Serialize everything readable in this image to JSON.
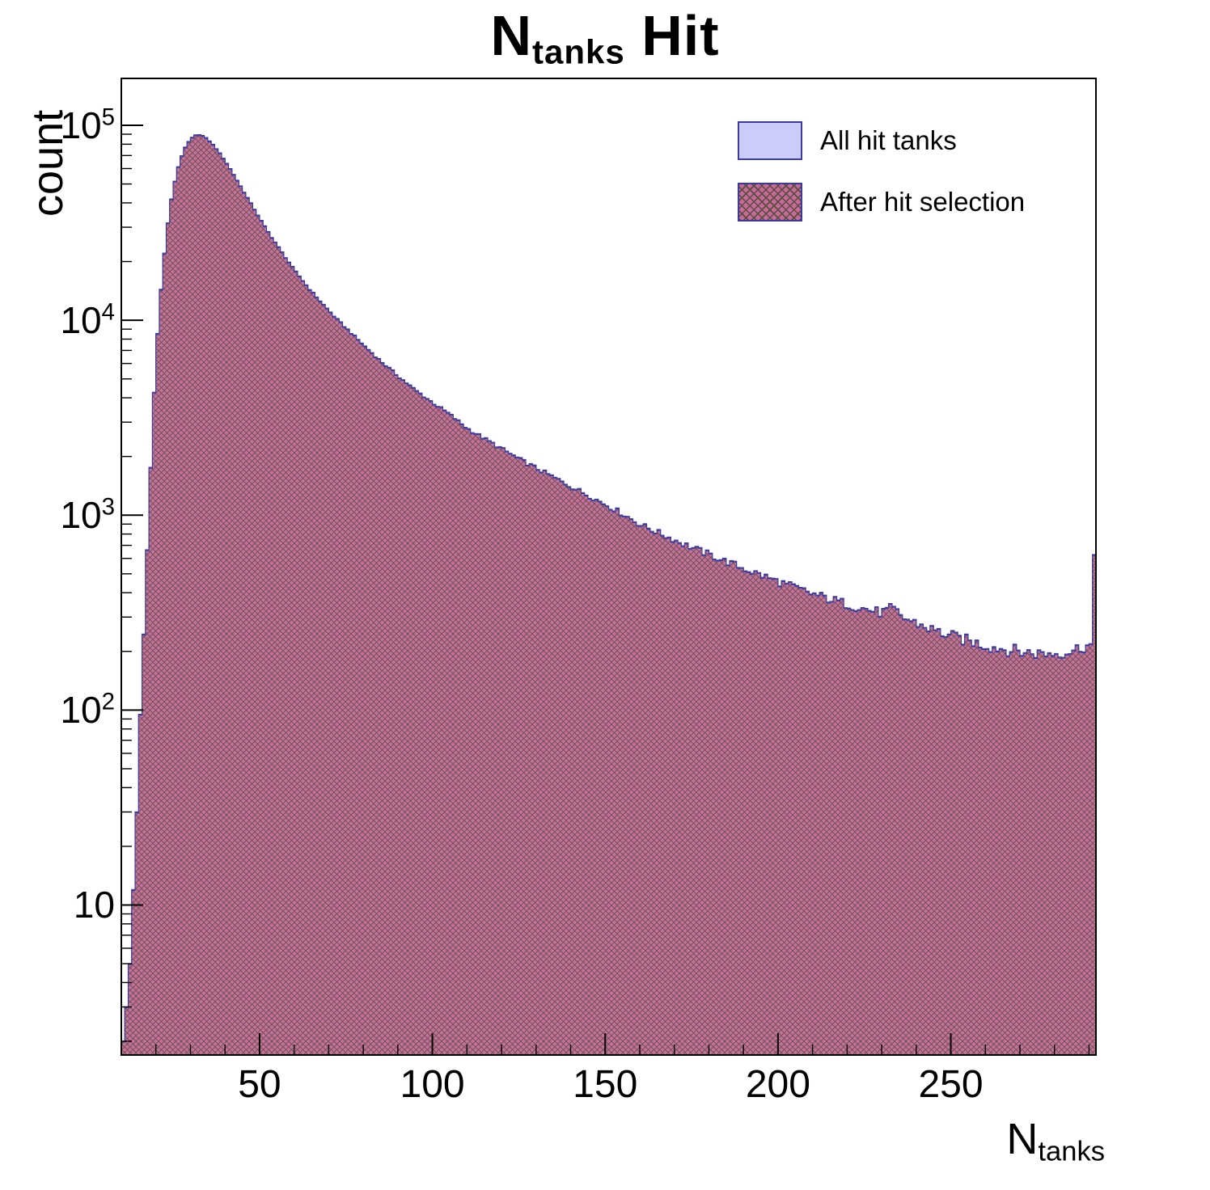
{
  "title": {
    "main": "N",
    "sub": "tanks",
    "rest": " Hit"
  },
  "axes": {
    "y_label": "count",
    "x_label_main": "N",
    "x_label_sub": "tanks"
  },
  "legend": {
    "items": [
      {
        "label": "All hit tanks"
      },
      {
        "label": "After hit selection"
      }
    ]
  },
  "colors": {
    "frame": "#000000",
    "all_fill": "#ccccfa",
    "after_fill": "#c9699b",
    "hatch_line": "#55503c",
    "edge": "#3a3aa0"
  },
  "chart_data": {
    "type": "bar",
    "subtype": "overlaid-step-histograms",
    "title": "N_tanks Hit",
    "xlabel": "N_tanks",
    "ylabel": "count",
    "y_scale": "log",
    "x_range": [
      10,
      292
    ],
    "y_range": [
      1.7,
      174000
    ],
    "bin_width": 1,
    "x_ticks": [
      50,
      100,
      150,
      200,
      250
    ],
    "x_minor_step": 10,
    "y_tick_exponents": [
      1,
      2,
      3,
      4,
      5
    ],
    "grid": false,
    "legend_position": "top-right",
    "peak": {
      "x": 32,
      "count": 90000
    },
    "last_bin_spike": {
      "x": 291,
      "count": 600
    },
    "series": [
      {
        "name": "All hit tanks",
        "fill": "#ccccfa",
        "edge": "#3a3aa0",
        "fraction": 1.0
      },
      {
        "name": "After hit selection",
        "fill": "#c9699b",
        "hatch": "#55503c",
        "edge": "#3a3aa0",
        "fraction": 0.99
      }
    ],
    "anchors": [
      [
        10,
        2
      ],
      [
        11,
        2.5
      ],
      [
        12,
        3
      ],
      [
        13,
        8
      ],
      [
        14,
        20
      ],
      [
        15,
        55
      ],
      [
        16,
        140
      ],
      [
        17,
        400
      ],
      [
        18,
        1100
      ],
      [
        19,
        2800
      ],
      [
        20,
        6500
      ],
      [
        21,
        11500
      ],
      [
        22,
        18000
      ],
      [
        23,
        27000
      ],
      [
        24,
        37000
      ],
      [
        25,
        47000
      ],
      [
        26,
        57000
      ],
      [
        27,
        66000
      ],
      [
        28,
        74000
      ],
      [
        29,
        80000
      ],
      [
        30,
        85000
      ],
      [
        31,
        88000
      ],
      [
        32,
        90000
      ],
      [
        33,
        89500
      ],
      [
        34,
        87500
      ],
      [
        35,
        85000
      ],
      [
        36,
        81500
      ],
      [
        37,
        78000
      ],
      [
        38,
        74000
      ],
      [
        40,
        66000
      ],
      [
        42,
        58000
      ],
      [
        44,
        50500
      ],
      [
        46,
        44000
      ],
      [
        48,
        38500
      ],
      [
        50,
        33500
      ],
      [
        53,
        27500
      ],
      [
        56,
        23000
      ],
      [
        60,
        18200
      ],
      [
        64,
        14800
      ],
      [
        68,
        12300
      ],
      [
        72,
        10300
      ],
      [
        76,
        8800
      ],
      [
        80,
        7500
      ],
      [
        85,
        6200
      ],
      [
        90,
        5200
      ],
      [
        95,
        4400
      ],
      [
        100,
        3800
      ],
      [
        105,
        3300
      ],
      [
        110,
        2800
      ],
      [
        115,
        2480
      ],
      [
        120,
        2200
      ],
      [
        125,
        1950
      ],
      [
        130,
        1750
      ],
      [
        135,
        1570
      ],
      [
        140,
        1410
      ],
      [
        145,
        1270
      ],
      [
        150,
        1140
      ],
      [
        155,
        1020
      ],
      [
        160,
        900
      ],
      [
        165,
        820
      ],
      [
        170,
        750
      ],
      [
        175,
        685
      ],
      [
        180,
        630
      ],
      [
        185,
        580
      ],
      [
        190,
        535
      ],
      [
        195,
        495
      ],
      [
        200,
        458
      ],
      [
        205,
        425
      ],
      [
        210,
        395
      ],
      [
        215,
        372
      ],
      [
        220,
        350
      ],
      [
        225,
        332
      ],
      [
        230,
        316
      ],
      [
        233,
        335
      ],
      [
        236,
        300
      ],
      [
        240,
        280
      ],
      [
        244,
        262
      ],
      [
        248,
        247
      ],
      [
        252,
        235
      ],
      [
        256,
        225
      ],
      [
        260,
        215
      ],
      [
        265,
        207
      ],
      [
        270,
        200
      ],
      [
        275,
        196
      ],
      [
        280,
        196
      ],
      [
        285,
        202
      ],
      [
        288,
        212
      ],
      [
        290.6,
        215
      ],
      [
        291,
        600
      ],
      [
        292,
        600
      ]
    ]
  }
}
